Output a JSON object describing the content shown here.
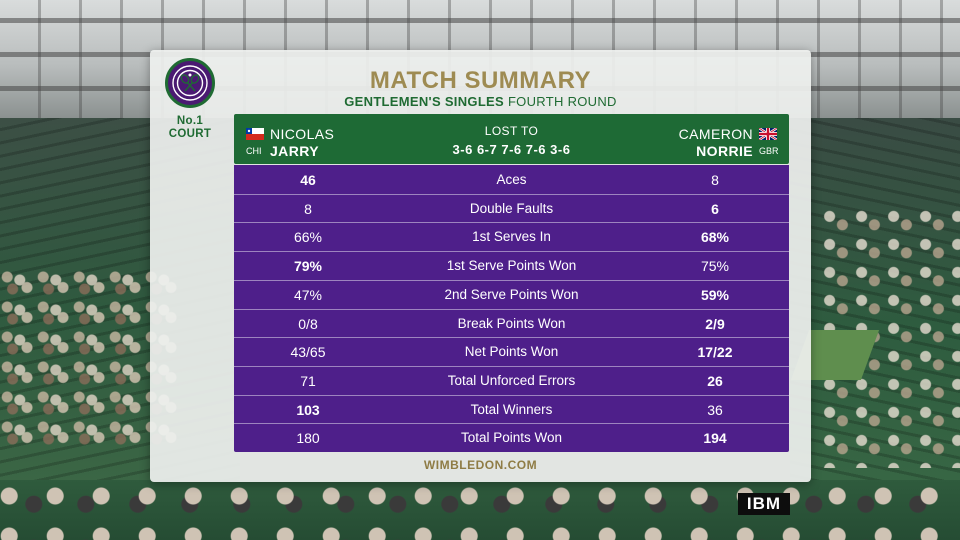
{
  "colors": {
    "header_green": "#1e6a35",
    "stats_purple": "#4e1f8a",
    "title_gold": "#9e8b52",
    "panel_bg": "#eef0ee"
  },
  "logo": {
    "emblem_text": "THE CHAMPIONSHIPS · WIMBLEDON",
    "court_line1": "No.1",
    "court_line2": "COURT"
  },
  "title": "MATCH SUMMARY",
  "subtitle": {
    "event": "GENTLEMEN'S SINGLES",
    "round": "FOURTH ROUND"
  },
  "header": {
    "left_player": {
      "first_name": "NICOLAS",
      "last_name": "JARRY",
      "country": "CHI",
      "flag_icon": "chile-flag-icon"
    },
    "right_player": {
      "first_name": "CAMERON",
      "last_name": "NORRIE",
      "country": "GBR",
      "flag_icon": "uk-flag-icon"
    },
    "result_label": "LOST TO",
    "score": "3-6 6-7 7-6 7-6 3-6"
  },
  "stats": [
    {
      "label": "Aces",
      "left": "46",
      "right": "8",
      "bold": "left"
    },
    {
      "label": "Double Faults",
      "left": "8",
      "right": "6",
      "bold": "right"
    },
    {
      "label": "1st Serves In",
      "left": "66%",
      "right": "68%",
      "bold": "right"
    },
    {
      "label": "1st Serve Points Won",
      "left": "79%",
      "right": "75%",
      "bold": "left"
    },
    {
      "label": "2nd Serve Points Won",
      "left": "47%",
      "right": "59%",
      "bold": "right"
    },
    {
      "label": "Break Points Won",
      "left": "0/8",
      "right": "2/9",
      "bold": "right"
    },
    {
      "label": "Net Points Won",
      "left": "43/65",
      "right": "17/22",
      "bold": "right"
    },
    {
      "label": "Total Unforced Errors",
      "left": "71",
      "right": "26",
      "bold": "right"
    },
    {
      "label": "Total Winners",
      "left": "103",
      "right": "36",
      "bold": "left"
    },
    {
      "label": "Total Points Won",
      "left": "180",
      "right": "194",
      "bold": "right"
    }
  ],
  "footer": "WIMBLEDON.COM",
  "sponsor": "IBM"
}
